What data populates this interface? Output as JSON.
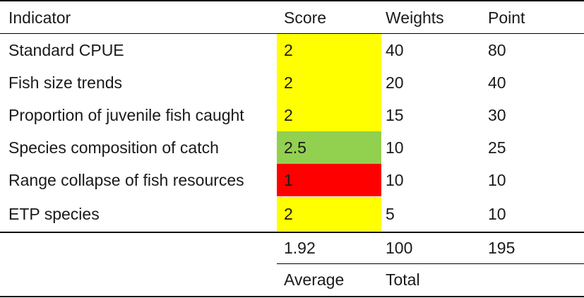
{
  "header": {
    "indicator": "Indicator",
    "score": "Score",
    "weights": "Weights",
    "point": "Point"
  },
  "rows": [
    {
      "indicator": "Standard CPUE",
      "score": "2",
      "weights": "40",
      "point": "80",
      "score_color": "#ffff00"
    },
    {
      "indicator": "Fish size trends",
      "score": "2",
      "weights": "20",
      "point": "40",
      "score_color": "#ffff00"
    },
    {
      "indicator": "Proportion of juvenile fish caught",
      "score": "2",
      "weights": "15",
      "point": "30",
      "score_color": "#ffff00"
    },
    {
      "indicator": "Species composition of catch",
      "score": "2.5",
      "weights": "10",
      "point": "25",
      "score_color": "#92d050"
    },
    {
      "indicator": "Range collapse of fish resources",
      "score": "1",
      "weights": "10",
      "point": "10",
      "score_color": "#ff0000"
    },
    {
      "indicator": "ETP species",
      "score": "2",
      "weights": "5",
      "point": "10",
      "score_color": "#ffff00"
    }
  ],
  "summary": {
    "score": "1.92",
    "weights": "100",
    "point": "195"
  },
  "footer": {
    "score_label": "Average",
    "weights_label": "Total"
  }
}
